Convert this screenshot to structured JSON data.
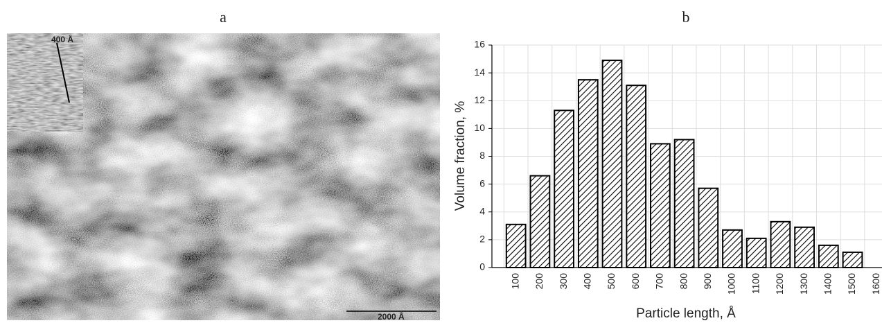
{
  "micrograph": {
    "label": "a",
    "inset_label": "400 Å",
    "scale_label": "2000 Å"
  },
  "chart_data": {
    "type": "bar",
    "title": "b",
    "x_label": "Particle length, Å",
    "y_label": "Volume fraction, %",
    "categories": [
      "100",
      "200",
      "300",
      "400",
      "500",
      "600",
      "700",
      "800",
      "900",
      "1000",
      "1100",
      "1200",
      "1300",
      "1400",
      "1500",
      "1600"
    ],
    "values": [
      3.1,
      6.6,
      11.3,
      13.5,
      14.9,
      13.1,
      8.9,
      9.2,
      5.7,
      2.7,
      2.1,
      3.3,
      2.9,
      1.6,
      1.1,
      null
    ],
    "color": "#000000",
    "ylim": [
      0,
      16
    ],
    "yticks": [
      0,
      2,
      4,
      6,
      8,
      10,
      12,
      14,
      16
    ],
    "grid": true
  }
}
